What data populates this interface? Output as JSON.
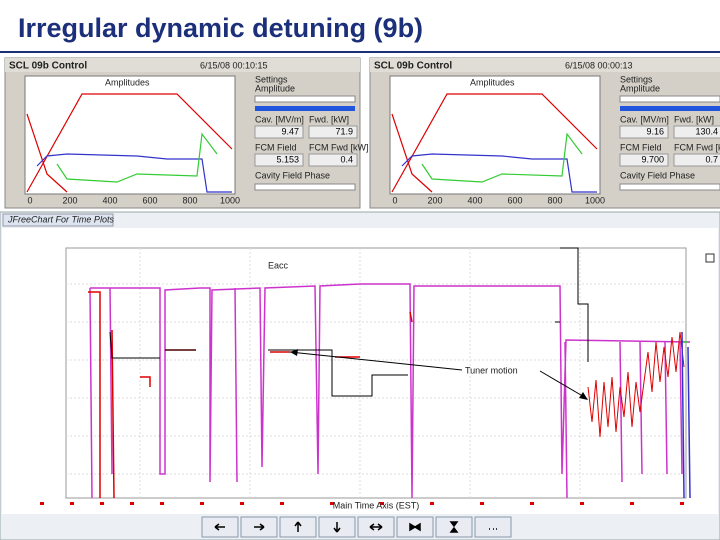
{
  "title": "Irregular dynamic detuning (9b)",
  "panels": [
    {
      "header": "SCL 09b Control",
      "timestamp": "6/15/08 00:10:15",
      "plot_title": "Amplitudes",
      "x_ticks": [
        "0",
        "200",
        "400",
        "600",
        "800",
        "1000"
      ],
      "settings": {
        "title": "Settings",
        "amplitude": "Amplitude",
        "cav_label": "Cav. [MV/m]",
        "fwd_label": "Fwd. [kW]",
        "cav_value": "9.47",
        "fwd_value": "71.9",
        "fcm_label": "FCM Field",
        "fcm_fwd_label": "FCM Fwd [kW]",
        "fcm_value": "5.153",
        "fcm_fwd_value": "0.4",
        "phase_label": "Cavity Field Phase"
      }
    },
    {
      "header": "SCL 09b Control",
      "timestamp": "6/15/08 00:00:13",
      "plot_title": "Amplitudes",
      "x_ticks": [
        "0",
        "200",
        "400",
        "600",
        "800",
        "1000"
      ],
      "settings": {
        "title": "Settings",
        "amplitude": "Amplitude",
        "cav_label": "Cav. [MV/m]",
        "fwd_label": "Fwd. [kW]",
        "cav_value": "9.16",
        "fwd_value": "130.4",
        "fcm_label": "FCM Field",
        "fcm_fwd_label": "FCM Fwd [kW]",
        "fcm_value": "9.700",
        "fcm_fwd_value": "0.7",
        "phase_label": "Cavity Field Phase"
      }
    }
  ],
  "bottom": {
    "window_title": "JFreeChart For Time Plots",
    "x_axis_label": "Main Time Axis (EST)",
    "annotations": [
      "Eacc",
      "Tuner motion"
    ]
  }
}
